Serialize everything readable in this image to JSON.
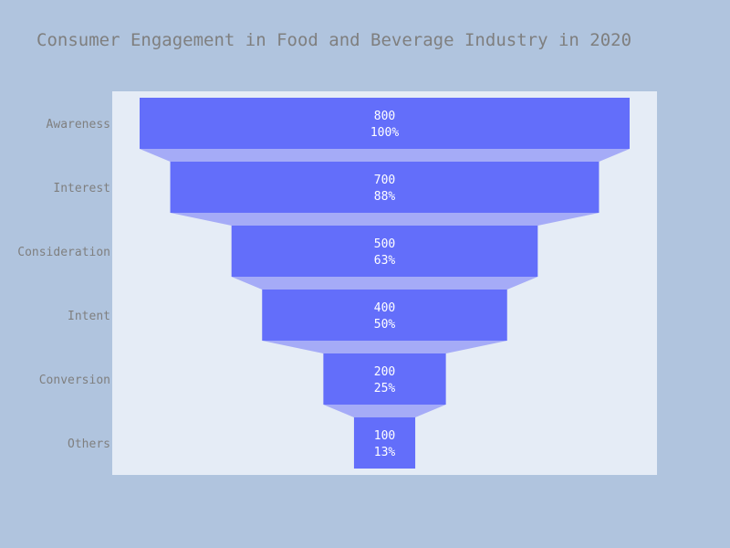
{
  "chart_data": {
    "type": "funnel",
    "title": "Consumer Engagement in Food and Beverage Industry in 2020",
    "categories": [
      "Awareness",
      "Interest",
      "Consideration",
      "Intent",
      "Conversion",
      "Others"
    ],
    "values": [
      800,
      700,
      500,
      400,
      200,
      100
    ],
    "percent_labels": [
      "100%",
      "88%",
      "63%",
      "50%",
      "25%",
      "13%"
    ],
    "colors": {
      "background": "#b0c4de",
      "plot_background": "#e5ecf6",
      "bar": "#636efa",
      "connector": "#a5abf7",
      "text": "#7f7f7f",
      "bar_text": "#ffffff"
    }
  }
}
